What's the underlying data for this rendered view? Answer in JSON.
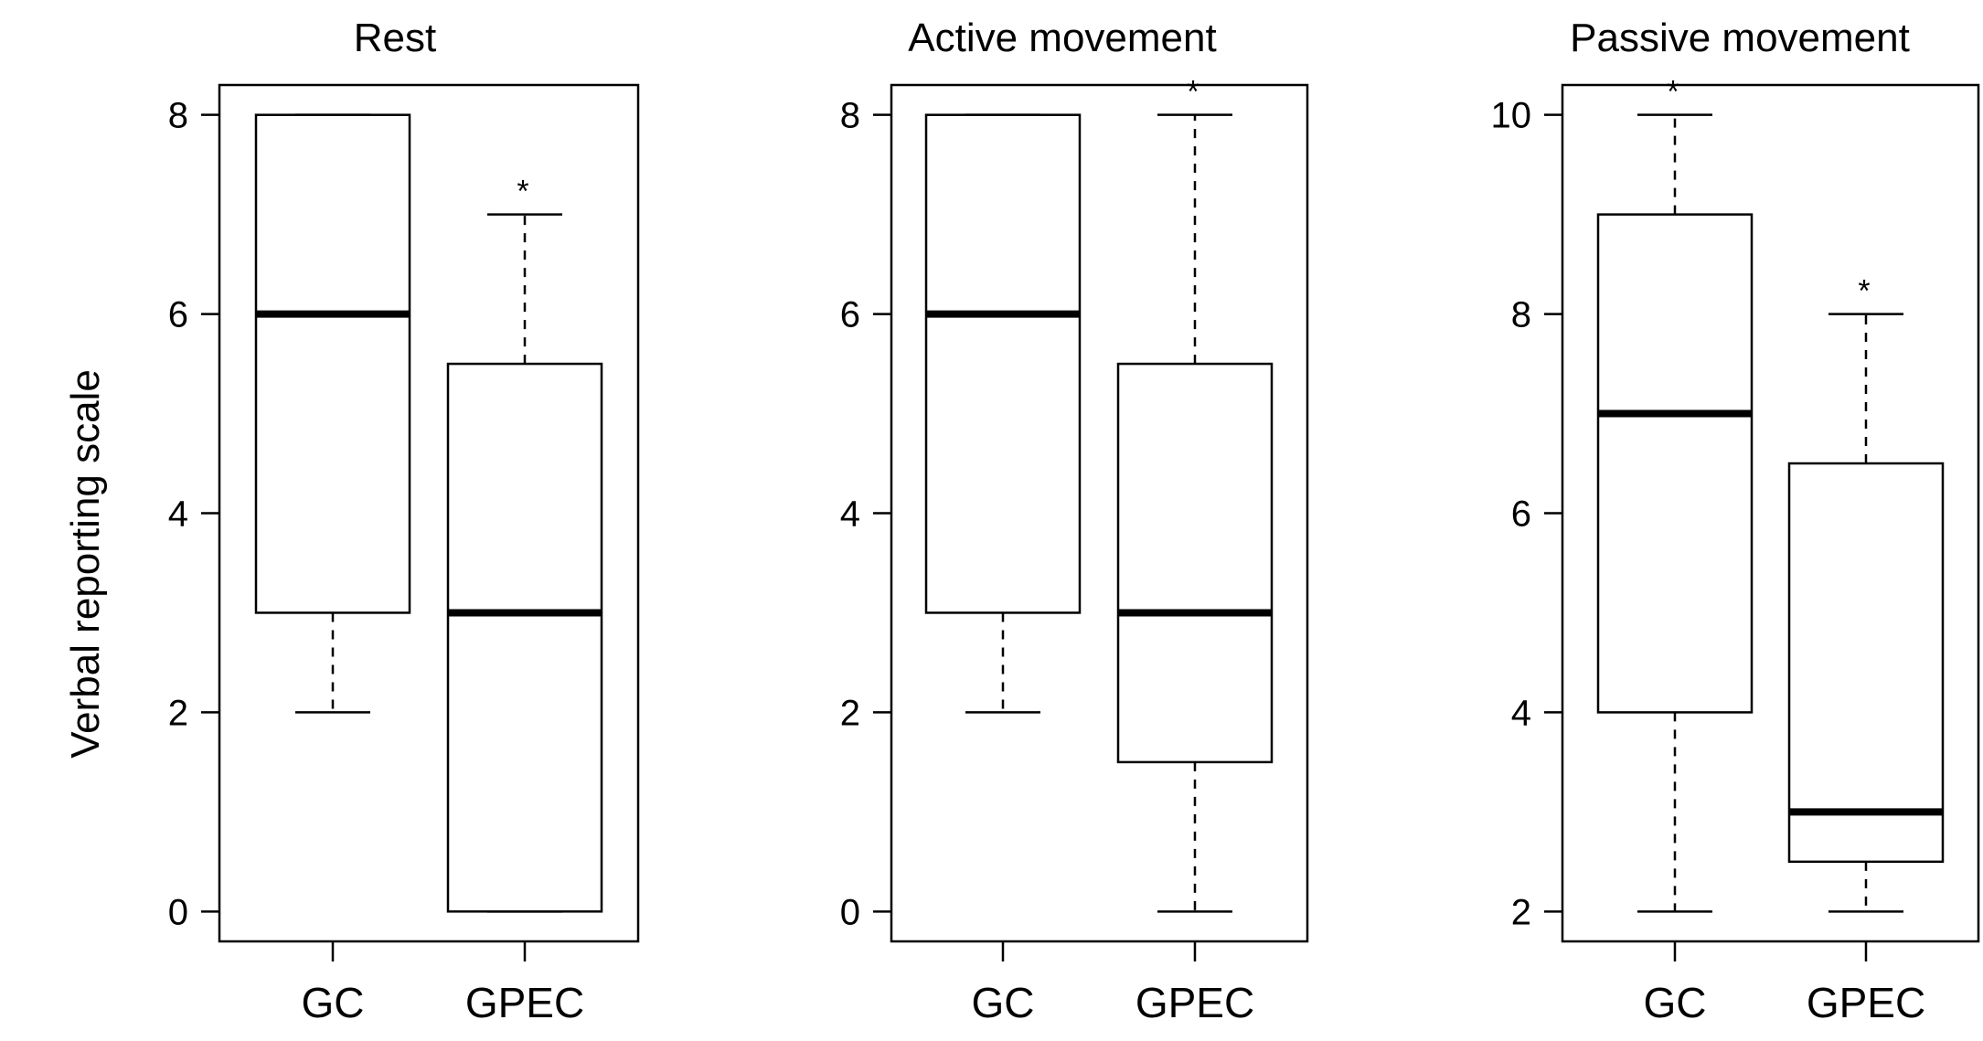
{
  "chart_data": {
    "type": "boxplot",
    "ylabel": "Verbal reporting scale",
    "panels": [
      {
        "title": "Rest",
        "ylim": [
          -0.3,
          8.3
        ],
        "yticks": [
          0,
          2,
          4,
          6,
          8
        ],
        "categories": [
          "GC",
          "GPEC"
        ],
        "boxes": [
          {
            "category": "GC",
            "whisker_low": 2,
            "q1": 3,
            "median": 6,
            "q3": 8,
            "whisker_high": 8,
            "significant": false
          },
          {
            "category": "GPEC",
            "whisker_low": 0,
            "q1": 0,
            "median": 3,
            "q3": 5.5,
            "whisker_high": 7,
            "significant": true
          }
        ]
      },
      {
        "title": "Active movement",
        "ylim": [
          -0.3,
          8.3
        ],
        "yticks": [
          0,
          2,
          4,
          6,
          8
        ],
        "categories": [
          "GC",
          "GPEC"
        ],
        "boxes": [
          {
            "category": "GC",
            "whisker_low": 2,
            "q1": 3,
            "median": 6,
            "q3": 8,
            "whisker_high": 8,
            "significant": false
          },
          {
            "category": "GPEC",
            "whisker_low": 0,
            "q1": 1.5,
            "median": 3,
            "q3": 5.5,
            "whisker_high": 8,
            "significant": true
          }
        ]
      },
      {
        "title": "Passive movement",
        "ylim": [
          1.7,
          10.3
        ],
        "yticks": [
          2,
          4,
          6,
          8,
          10
        ],
        "categories": [
          "GC",
          "GPEC"
        ],
        "boxes": [
          {
            "category": "GC",
            "whisker_low": 2,
            "q1": 4,
            "median": 7,
            "q3": 9,
            "whisker_high": 10,
            "significant": true
          },
          {
            "category": "GPEC",
            "whisker_low": 2,
            "q1": 2.5,
            "median": 3,
            "q3": 6.5,
            "whisker_high": 8,
            "significant": true
          }
        ]
      }
    ],
    "significance_marker": "*",
    "colors": {
      "line": "#000000",
      "box_fill": "#ffffff"
    }
  }
}
